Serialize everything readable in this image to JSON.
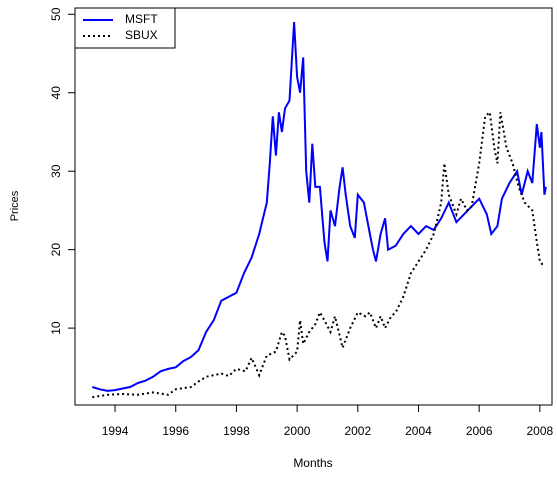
{
  "chart_data": {
    "type": "line",
    "xlabel": "Months",
    "ylabel": "Prices",
    "xlim": [
      1992.68,
      2008.4
    ],
    "ylim": [
      0.2,
      50.8
    ],
    "xticks": [
      1994,
      1996,
      1998,
      2000,
      2002,
      2004,
      2006,
      2008
    ],
    "yticks": [
      10,
      20,
      30,
      40,
      50
    ],
    "legend": "top-left",
    "series": [
      {
        "name": "MSFT",
        "color": "#0000ff",
        "dash": "solid",
        "x": [
          1993.25,
          1993.5,
          1993.75,
          1994,
          1994.25,
          1994.5,
          1994.75,
          1995,
          1995.25,
          1995.5,
          1995.75,
          1996,
          1996.25,
          1996.5,
          1996.75,
          1997,
          1997.25,
          1997.5,
          1997.75,
          1998,
          1998.25,
          1998.5,
          1998.75,
          1999,
          1999.1,
          1999.2,
          1999.3,
          1999.4,
          1999.5,
          1999.6,
          1999.75,
          1999.9,
          2000,
          2000.1,
          2000.2,
          2000.3,
          2000.4,
          2000.5,
          2000.6,
          2000.75,
          2000.9,
          2001,
          2001.1,
          2001.25,
          2001.4,
          2001.5,
          2001.6,
          2001.75,
          2001.9,
          2002,
          2002.2,
          2002.4,
          2002.5,
          2002.6,
          2002.75,
          2002.9,
          2003,
          2003.25,
          2003.5,
          2003.75,
          2004,
          2004.25,
          2004.5,
          2004.75,
          2005,
          2005.25,
          2005.5,
          2005.75,
          2006,
          2006.25,
          2006.4,
          2006.6,
          2006.75,
          2007,
          2007.25,
          2007.4,
          2007.6,
          2007.75,
          2007.9,
          2008,
          2008.05,
          2008.15,
          2008.2
        ],
        "values": [
          2.5,
          2.2,
          2.0,
          2.1,
          2.3,
          2.5,
          3.0,
          3.3,
          3.8,
          4.5,
          4.8,
          5.0,
          5.8,
          6.3,
          7.2,
          9.5,
          11,
          13.5,
          14,
          14.5,
          17,
          19,
          22,
          26,
          31,
          37,
          32,
          37.5,
          35,
          38,
          39,
          49,
          42,
          40,
          44.5,
          30,
          26,
          33.5,
          28,
          28,
          21,
          18.5,
          25,
          23,
          28,
          30.5,
          27,
          23,
          21.5,
          27,
          26,
          22,
          20,
          18.5,
          22,
          24,
          20,
          20.5,
          22,
          23,
          22,
          23,
          22.5,
          24,
          26,
          23.5,
          24.5,
          25.5,
          26.5,
          24.5,
          22,
          23,
          26.5,
          28.5,
          30,
          27,
          30,
          28.5,
          36,
          33,
          35,
          27,
          28
        ]
      },
      {
        "name": "SBUX",
        "color": "#000000",
        "dash": "dotted",
        "x": [
          1993.25,
          1993.75,
          1994.25,
          1994.75,
          1995.25,
          1995.75,
          1996,
          1996.5,
          1996.75,
          1997,
          1997.5,
          1997.75,
          1998,
          1998.3,
          1998.5,
          1998.75,
          1999,
          1999.3,
          1999.5,
          1999.6,
          1999.75,
          2000,
          2000.1,
          2000.2,
          2000.4,
          2000.6,
          2000.75,
          2000.9,
          2001.1,
          2001.25,
          2001.5,
          2001.75,
          2002,
          2002.25,
          2002.4,
          2002.6,
          2002.75,
          2002.9,
          2003.1,
          2003.25,
          2003.5,
          2003.75,
          2004,
          2004.25,
          2004.5,
          2004.6,
          2004.75,
          2004.85,
          2005,
          2005.25,
          2005.4,
          2005.6,
          2005.75,
          2006,
          2006.2,
          2006.35,
          2006.5,
          2006.6,
          2006.7,
          2006.9,
          2007.1,
          2007.3,
          2007.5,
          2007.75,
          2007.9,
          2008,
          2008.15
        ],
        "values": [
          1.2,
          1.5,
          1.6,
          1.5,
          1.8,
          1.5,
          2.2,
          2.5,
          3.2,
          3.8,
          4.2,
          3.9,
          4.8,
          4.5,
          6.2,
          4.0,
          6.5,
          7,
          9.5,
          9.0,
          6.0,
          7,
          11,
          8,
          9.5,
          10.5,
          12,
          11,
          9.5,
          11.5,
          7.5,
          10,
          12,
          11.5,
          12,
          10,
          11.5,
          10,
          11.5,
          12,
          14,
          17,
          18.5,
          20,
          22,
          23.5,
          26,
          31,
          27,
          24.5,
          26.5,
          25,
          25.5,
          31,
          37,
          37.5,
          33,
          31,
          37.5,
          33,
          31,
          28,
          26,
          25,
          21,
          18.5,
          17.8
        ]
      }
    ]
  }
}
